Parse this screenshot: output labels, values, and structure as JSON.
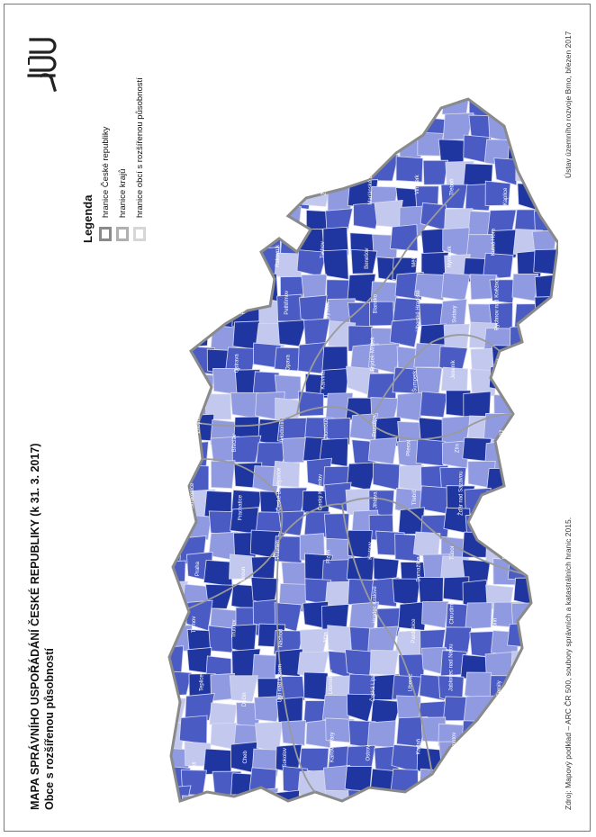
{
  "header": {
    "title": "MAPA SPRÁVNÍHO USPOŘÁDÁNÍ ČESKÉ REPUBLIKY (k 31. 3. 2017)",
    "subtitle": "Obce s rozšířenou působností"
  },
  "logo": {
    "text": "ÚÚR",
    "icon": "uur-logo-icon"
  },
  "legend": {
    "title": "Legenda",
    "items": [
      {
        "label": "hranice České republiky",
        "stroke": "#8a8a8a"
      },
      {
        "label": "hranice krajů",
        "stroke": "#b0b0b0"
      },
      {
        "label": "hranice obcí s rozšířenou působností",
        "stroke": "#d6d6d6"
      }
    ]
  },
  "footer": {
    "source": "Zdroj: Mapový podklad – ARC ČR 500, soubory správních a katastrálních hranic 2015.",
    "credit": "Ústav územního rozvoje Brno, březen 2017"
  },
  "colors": {
    "dark": "#1f36a0",
    "mid": "#4a5cc4",
    "light": "#8f9ae0",
    "pale": "#c3c8ee",
    "border": "#8a8a8a"
  },
  "map": {
    "labels": [
      "Aš",
      "Cheb",
      "Sokolov",
      "Karlovy Vary",
      "Ostrov",
      "Kadaň",
      "Chomutov",
      "Most",
      "Teplice",
      "Děčín",
      "Ústí nad Labem",
      "Litoměřice",
      "Česká Lípa",
      "Liberec",
      "Jablonec nad Nisou",
      "Semily",
      "Turnov",
      "Trutnov",
      "Náchod",
      "Jičín",
      "Hradec Králové",
      "Pardubice",
      "Chrudim",
      "Kolín",
      "Praha",
      "Beroun",
      "Příbram",
      "Plzeň",
      "Klatovy",
      "Domažlice",
      "Tábor",
      "Písek",
      "Strakonice",
      "Prachatice",
      "České Budějovice",
      "Český Krumlov",
      "Jihlava",
      "Třebíč",
      "Žďár nad Sázavou",
      "Brno",
      "Znojmo",
      "Břeclav",
      "Hodonín",
      "Olomouc",
      "Prostějov",
      "Přerov",
      "Zlín",
      "Kroměříž",
      "Vsetín",
      "Ostrava",
      "Opava",
      "Karviná",
      "Frýdek-Místek",
      "Šumperk",
      "Jeseník",
      "Bruntál",
      "Nový Jičín",
      "Havlíčkův Brod",
      "Pelhřimov",
      "Vyškov",
      "Blansko",
      "Uherské Hradiště",
      "Svitavy",
      "Rychnov nad Kněžnou",
      "Mladá Boleslav",
      "Kladno",
      "Rakovník",
      "Tachov",
      "Benešov",
      "Mělník",
      "Nymburk",
      "Kutná Hora",
      "Jindřichův Hradec",
      "Rokycany",
      "Louny",
      "Žatec",
      "Mariánské Lázně",
      "Vimperk",
      "Třeboň",
      "Kaplice"
    ]
  }
}
